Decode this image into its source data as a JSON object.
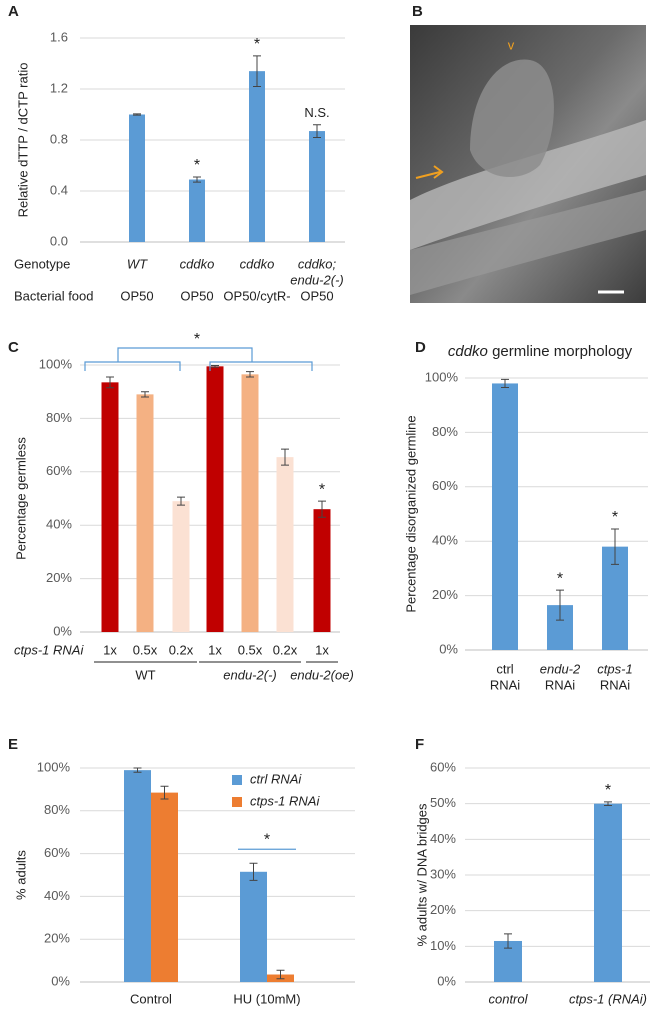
{
  "chart_data": [
    {
      "type": "bar",
      "panel": "A",
      "ylabel": "Relative  dTTP / dCTP ratio",
      "row_labels": [
        "Genotype",
        "Bacterial food"
      ],
      "categories": [
        [
          "WT"
        ],
        [
          "cddko"
        ],
        [
          "cddko"
        ],
        [
          "cddko;",
          "endu-2(-)"
        ]
      ],
      "categories_italic": true,
      "categories_row2": [
        "OP50",
        "OP50",
        "OP50/cytR-",
        "OP50"
      ],
      "values": [
        1.0,
        0.49,
        1.34,
        0.87
      ],
      "errors": [
        0.005,
        0.02,
        0.12,
        0.05
      ],
      "significance": [
        null,
        "*",
        "*",
        "N.S."
      ],
      "color": "#5b9bd5",
      "ylim": [
        0,
        1.6
      ],
      "yticks": [
        {
          "value": 0,
          "label": "0.0"
        },
        0.4,
        0.8,
        1.2,
        1.6
      ],
      "grid": true
    },
    {
      "type": "bar",
      "panel": "C",
      "ylabel": "Percentage germless",
      "row_label": "ctps-1 RNAi",
      "categories": [
        "1x",
        "0.5x",
        "0.2x",
        "1x",
        "0.5x",
        "0.2x",
        "1x"
      ],
      "groups": [
        "WT",
        "endu-2(-)",
        "endu-2(oe)"
      ],
      "group_index": [
        0,
        0,
        0,
        1,
        1,
        1,
        2
      ],
      "values": [
        93.5,
        89,
        49,
        99.5,
        96.5,
        65.5,
        46
      ],
      "errors": [
        2,
        1,
        1.5,
        0.3,
        1,
        3,
        3
      ],
      "colors": [
        "#c00000",
        "#f4b183",
        "#fbe1d3",
        "#c00000",
        "#f4b183",
        "#fbe1d3",
        "#c00000"
      ],
      "significance": [
        null,
        null,
        null,
        null,
        null,
        null,
        "*"
      ],
      "comparison_significance": "*",
      "ylim": [
        0,
        100
      ],
      "yticks": [
        {
          "value": 0,
          "label": "0%"
        },
        {
          "value": 20,
          "label": "20%"
        },
        {
          "value": 40,
          "label": "40%"
        },
        {
          "value": 60,
          "label": "60%"
        },
        {
          "value": 80,
          "label": "80%"
        },
        {
          "value": 100,
          "label": "100%"
        }
      ],
      "grid": true
    },
    {
      "type": "bar",
      "panel": "D",
      "title_italic": "cddko",
      "title": "germline morphology",
      "ylabel": "Percentage disorganized germline",
      "categories": [
        [
          "ctrl",
          "RNAi"
        ],
        [
          "endu-2",
          "RNAi"
        ],
        [
          "ctps-1",
          "RNAi"
        ]
      ],
      "categories_italic": [
        false,
        true,
        true
      ],
      "values": [
        98,
        16.5,
        38
      ],
      "errors": [
        1.5,
        5.5,
        6.5
      ],
      "significance": [
        null,
        "*",
        "*"
      ],
      "color": "#5b9bd5",
      "ylim": [
        0,
        100
      ],
      "yticks": [
        {
          "value": 0,
          "label": "0%"
        },
        {
          "value": 20,
          "label": "20%"
        },
        {
          "value": 40,
          "label": "40%"
        },
        {
          "value": 60,
          "label": "60%"
        },
        {
          "value": 80,
          "label": "80%"
        },
        {
          "value": 100,
          "label": "100%"
        }
      ],
      "grid": true
    },
    {
      "type": "bar",
      "panel": "E",
      "ylabel": "% adults",
      "categories": [
        "Control",
        "HU (10mM)"
      ],
      "series": [
        {
          "name": "ctrl RNAi",
          "color": "#5b9bd5",
          "values": [
            99,
            51.5
          ],
          "errors": [
            1,
            4
          ]
        },
        {
          "name": "ctps-1 RNAi",
          "color": "#ed7d31",
          "values": [
            88.5,
            3.5
          ],
          "errors": [
            3,
            2
          ]
        }
      ],
      "group_significance": [
        null,
        "*"
      ],
      "legend": "top-right",
      "ylim": [
        0,
        100
      ],
      "yticks": [
        {
          "value": 0,
          "label": "0%"
        },
        {
          "value": 20,
          "label": "20%"
        },
        {
          "value": 40,
          "label": "40%"
        },
        {
          "value": 60,
          "label": "60%"
        },
        {
          "value": 80,
          "label": "80%"
        },
        {
          "value": 100,
          "label": "100%"
        }
      ],
      "grid": true
    },
    {
      "type": "bar",
      "panel": "F",
      "ylabel": "% adults w/ DNA bridges",
      "categories": [
        "control",
        "ctps-1 (RNAi)"
      ],
      "categories_italic": true,
      "values": [
        11.5,
        50
      ],
      "errors": [
        2,
        0.5
      ],
      "significance": [
        null,
        "*"
      ],
      "color": "#5b9bd5",
      "ylim": [
        0,
        60
      ],
      "yticks": [
        {
          "value": 0,
          "label": "0%"
        },
        {
          "value": 10,
          "label": "10%"
        },
        {
          "value": 20,
          "label": "20%"
        },
        {
          "value": 30,
          "label": "30%"
        },
        {
          "value": 40,
          "label": "40%"
        },
        {
          "value": 50,
          "label": "50%"
        },
        {
          "value": 60,
          "label": "60%"
        }
      ],
      "grid": true
    }
  ],
  "image_panel": {
    "label": "B",
    "marker": "v"
  }
}
